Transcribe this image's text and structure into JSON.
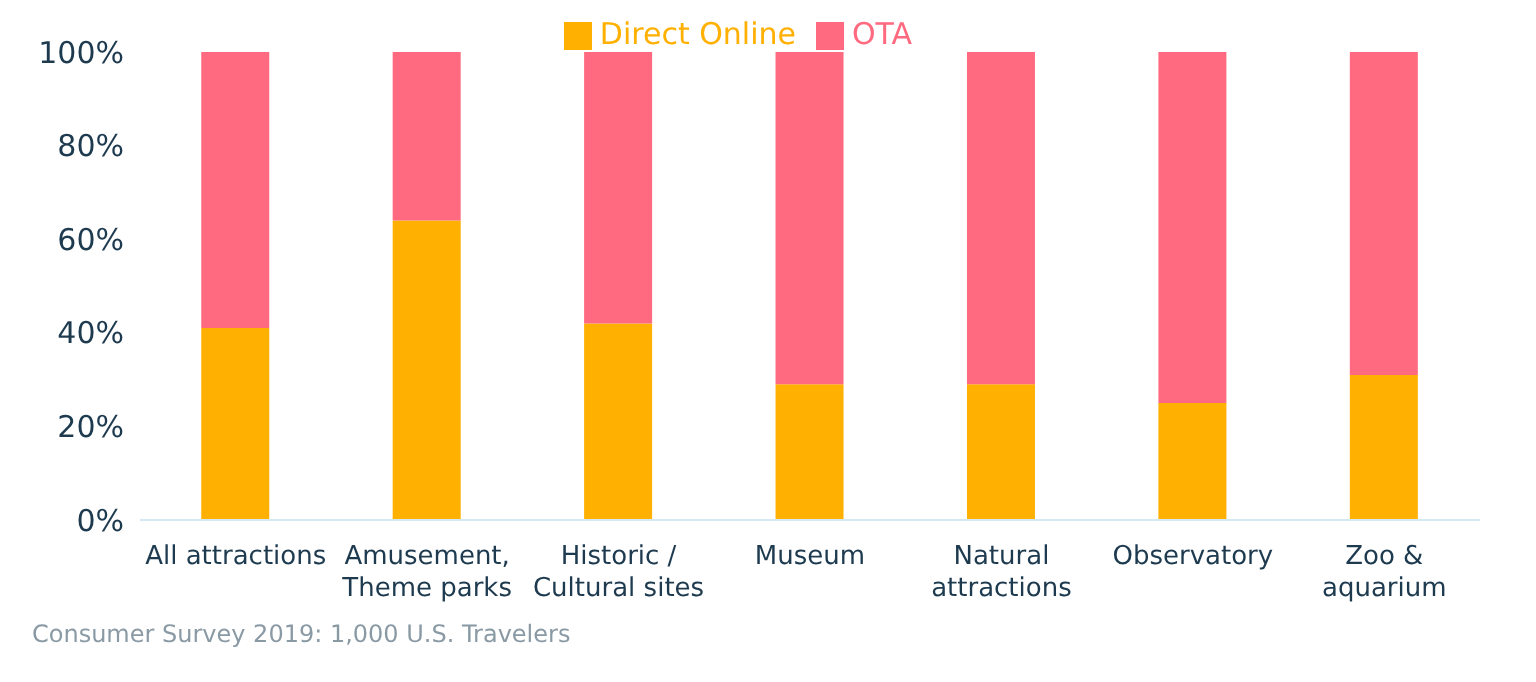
{
  "chart_data": {
    "type": "bar",
    "stacked": true,
    "categories": [
      "All attractions",
      "Amusement,\nTheme parks",
      "Historic /\nCultural sites",
      "Museum",
      "Natural\nattractions",
      "Observatory",
      "Zoo &\naquarium"
    ],
    "series": [
      {
        "name": "Direct Online",
        "color": "#ffb000",
        "values": [
          41,
          64,
          42,
          29,
          29,
          25,
          31
        ]
      },
      {
        "name": "OTA",
        "color": "#ff6a80",
        "values": [
          59,
          36,
          58,
          71,
          71,
          75,
          69
        ]
      }
    ],
    "ylim": [
      0,
      100
    ],
    "yticks": [
      {
        "value": 0,
        "label": "0%"
      },
      {
        "value": 20,
        "label": "20%"
      },
      {
        "value": 40,
        "label": "40%"
      },
      {
        "value": 60,
        "label": "60%"
      },
      {
        "value": 80,
        "label": "80%"
      },
      {
        "value": 100,
        "label": "100%"
      }
    ],
    "grid": false,
    "legend": "top",
    "annotations": [
      "Consumer Survey 2019: 1,000 U.S. Travelers"
    ]
  }
}
